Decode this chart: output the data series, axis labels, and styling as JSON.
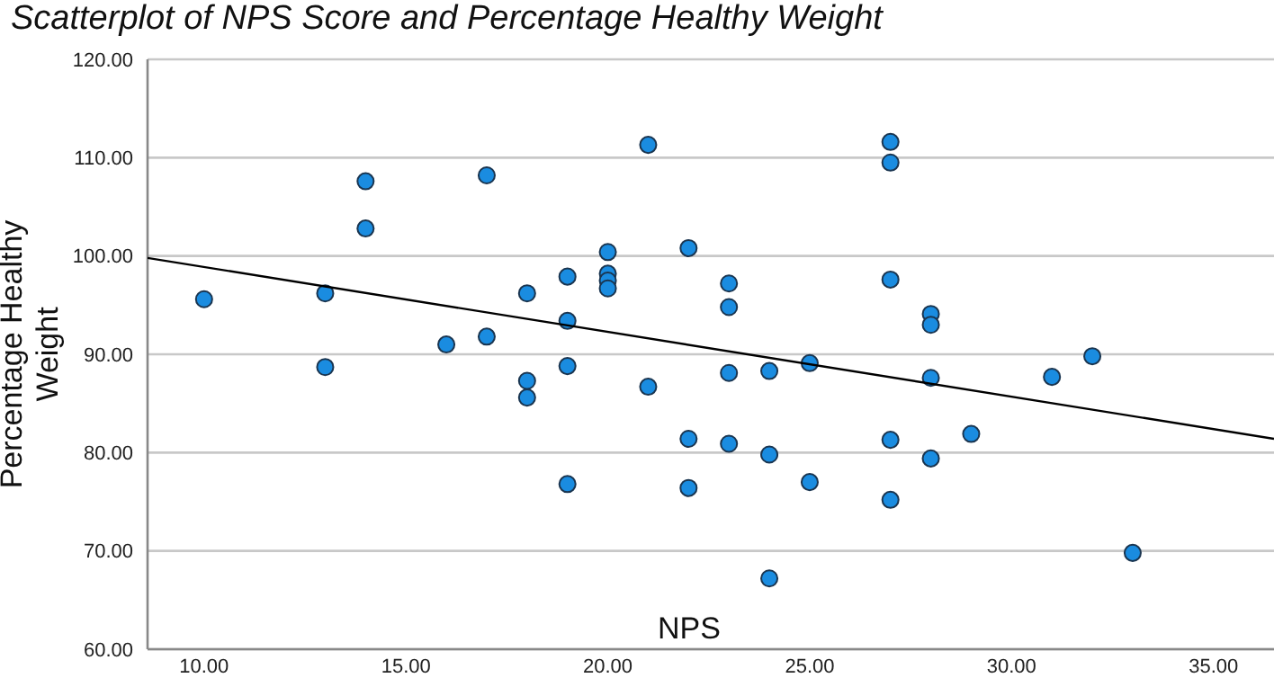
{
  "chart_data": {
    "type": "scatter",
    "title": "Scatterplot of NPS Score and Percentage Healthy Weight",
    "xlabel": "NPS",
    "ylabel": "Percentage Healthy Weight",
    "xlim": [
      8.6,
      36.5
    ],
    "ylim": [
      60,
      120
    ],
    "xticks": [
      {
        "value": 10,
        "label": "10.00"
      },
      {
        "value": 15,
        "label": "15.00"
      },
      {
        "value": 20,
        "label": "20.00"
      },
      {
        "value": 25,
        "label": "25.00"
      },
      {
        "value": 30,
        "label": "30.00"
      },
      {
        "value": 35,
        "label": "35.00"
      }
    ],
    "yticks": [
      {
        "value": 60,
        "label": "60.00"
      },
      {
        "value": 70,
        "label": "70.00"
      },
      {
        "value": 80,
        "label": "80.00"
      },
      {
        "value": 90,
        "label": "90.00"
      },
      {
        "value": 100,
        "label": "100.00"
      },
      {
        "value": 110,
        "label": "110.00"
      },
      {
        "value": 120,
        "label": "120.00"
      }
    ],
    "grid": "y",
    "series": [
      {
        "marker": "circle",
        "color": "#1a8ce0",
        "x": [
          10,
          13,
          13,
          14,
          14,
          16,
          17,
          17,
          18,
          18,
          18,
          19,
          19,
          19,
          19,
          20,
          20,
          20,
          20,
          21,
          21,
          22,
          22,
          22,
          23,
          23,
          23,
          23,
          24,
          24,
          24,
          25,
          25,
          27,
          27,
          27,
          27,
          27,
          28,
          28,
          28,
          28,
          29,
          31,
          32,
          33
        ],
        "values": [
          95.6,
          96.2,
          88.7,
          107.6,
          102.8,
          91.0,
          91.8,
          108.2,
          96.2,
          87.3,
          85.6,
          97.9,
          93.4,
          88.8,
          76.8,
          100.4,
          98.2,
          97.5,
          96.7,
          111.3,
          86.7,
          100.8,
          81.4,
          76.4,
          97.2,
          94.8,
          88.1,
          80.9,
          88.3,
          79.8,
          67.2,
          89.1,
          77.0,
          111.6,
          109.5,
          97.6,
          81.3,
          75.2,
          94.1,
          93.0,
          87.6,
          79.4,
          81.9,
          87.7,
          89.8,
          69.8
        ]
      },
      {
        "type": "line",
        "marker": "none",
        "color": "#000000",
        "x": [
          8.6,
          36.5
        ],
        "values": [
          99.8,
          81.4
        ]
      }
    ]
  }
}
